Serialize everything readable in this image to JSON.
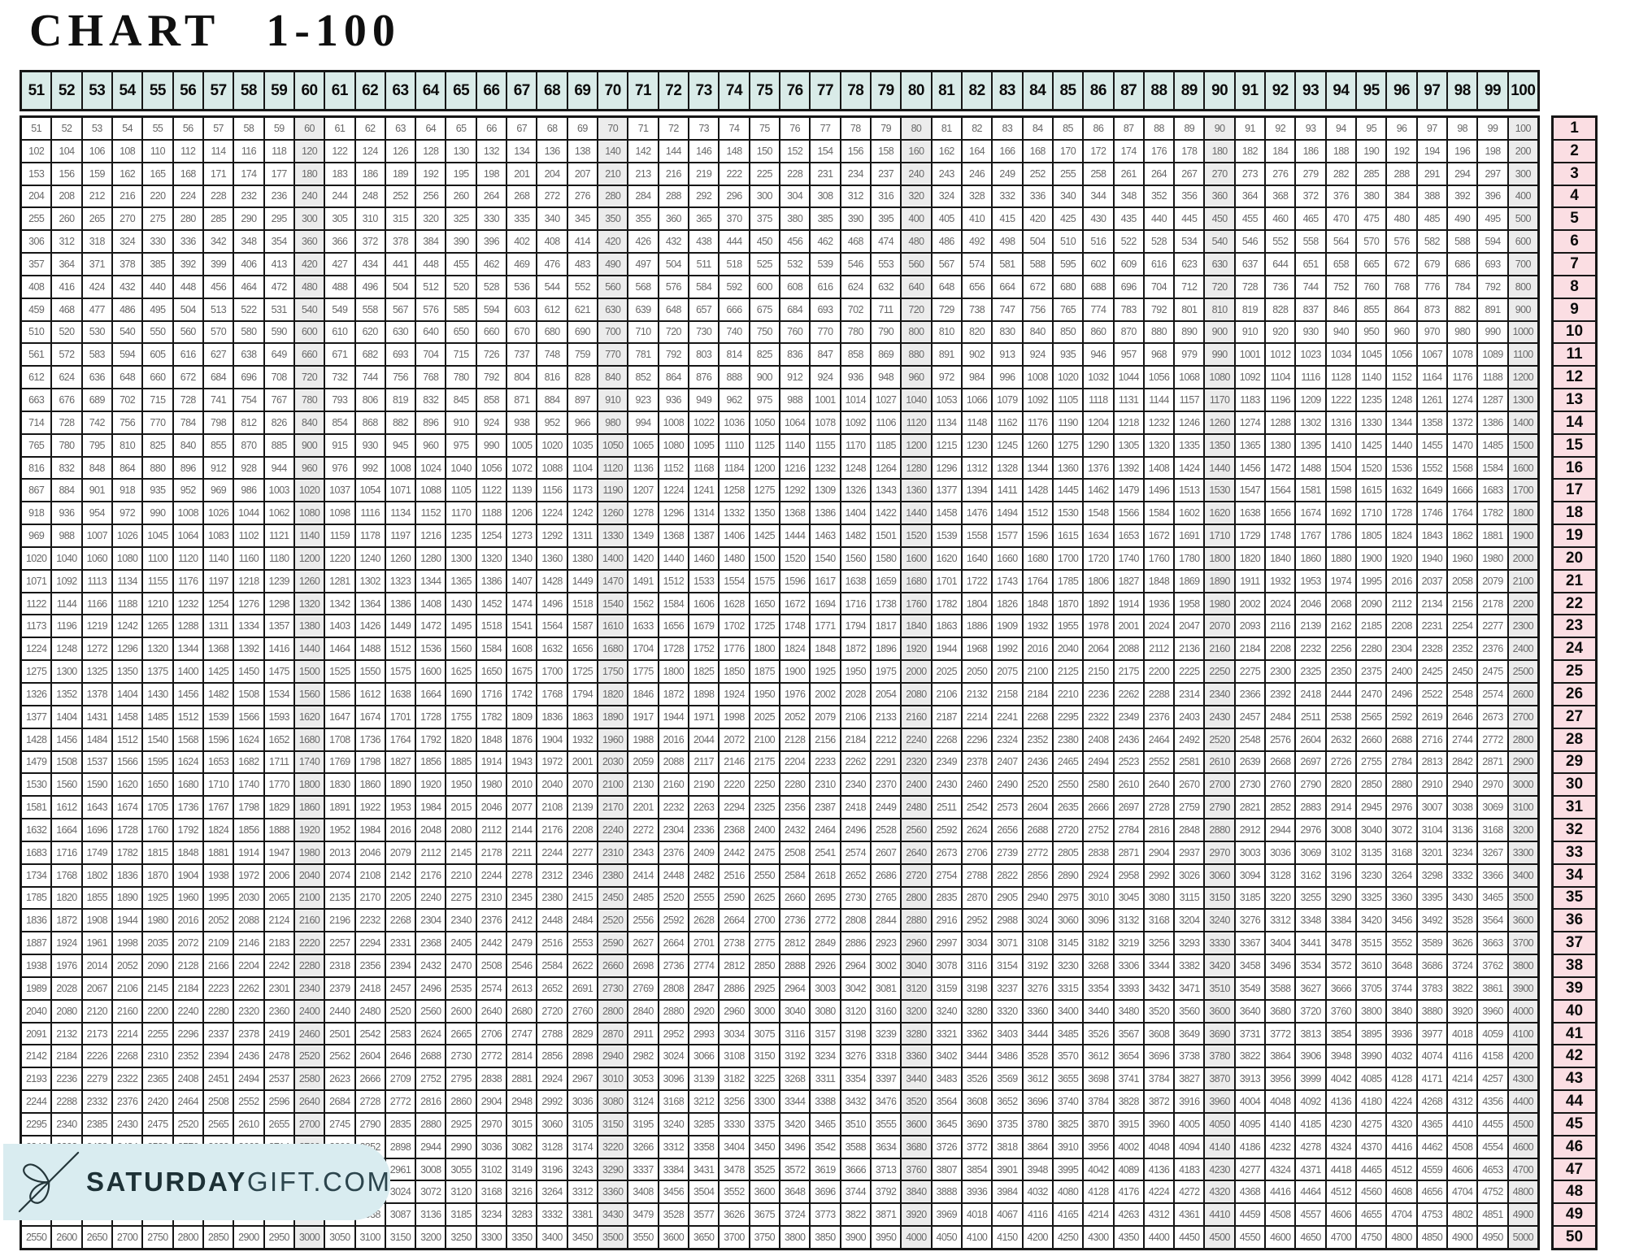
{
  "page": {
    "title": "CHART 1-100"
  },
  "table": {
    "column_headers": [
      51,
      52,
      53,
      54,
      55,
      56,
      57,
      58,
      59,
      60,
      61,
      62,
      63,
      64,
      65,
      66,
      67,
      68,
      69,
      70,
      71,
      72,
      73,
      74,
      75,
      76,
      77,
      78,
      79,
      80,
      81,
      82,
      83,
      84,
      85,
      86,
      87,
      88,
      89,
      90,
      91,
      92,
      93,
      94,
      95,
      96,
      97,
      98,
      99,
      100
    ],
    "row_headers": [
      1,
      2,
      3,
      4,
      5,
      6,
      7,
      8,
      9,
      10,
      11,
      12,
      13,
      14,
      15,
      16,
      17,
      18,
      19,
      20,
      21,
      22,
      23,
      24,
      25,
      26,
      27,
      28,
      29,
      30,
      31,
      32,
      33,
      34,
      35,
      36,
      37,
      38,
      39,
      40,
      41,
      42,
      43,
      44,
      45,
      46,
      47,
      48,
      49,
      50
    ],
    "cell_rule": "each cell value = column header × row header (multiplication chart)",
    "first_row_values": [
      51,
      52,
      53,
      54,
      55,
      56,
      57,
      58,
      59,
      60,
      61,
      62,
      63,
      64,
      65,
      66,
      67,
      68,
      69,
      70,
      71,
      72,
      73,
      74,
      75,
      76,
      77,
      78,
      79,
      80,
      81,
      82,
      83,
      84,
      85,
      86,
      87,
      88,
      89,
      90,
      91,
      92,
      93,
      94,
      95,
      96,
      97,
      98,
      99,
      100
    ],
    "last_row_values": [
      2550,
      2600,
      2650,
      2700,
      2750,
      2800,
      2850,
      2900,
      2950,
      3000,
      3050,
      3100,
      3150,
      3200,
      3250,
      3300,
      3350,
      3400,
      3450,
      3500,
      3550,
      3600,
      3650,
      3700,
      3750,
      3800,
      3850,
      3900,
      3950,
      4000,
      4050,
      4100,
      4150,
      4200,
      4250,
      4300,
      4350,
      4400,
      4450,
      4500,
      4550,
      4600,
      4650,
      4700,
      4750,
      4800,
      4850,
      4900,
      4950,
      5000
    ],
    "highlighted_columns": [
      60,
      70,
      80,
      90,
      100
    ]
  },
  "footer_logo": {
    "icon": "ribbon-bow-icon",
    "brand_bold": "SATURDAY",
    "brand_light": "GIFT.COM"
  },
  "colors": {
    "header_bg": "#d9ebe8",
    "row_number_bg": "#fbdee3",
    "highlight_column_bg": "#ececec",
    "grid_border": "#161616",
    "data_text": "#686868",
    "header_text": "#0b0b0b",
    "logo_bg": "#d9ecf0",
    "logo_text": "#1d3136",
    "title_text": "#101010"
  }
}
